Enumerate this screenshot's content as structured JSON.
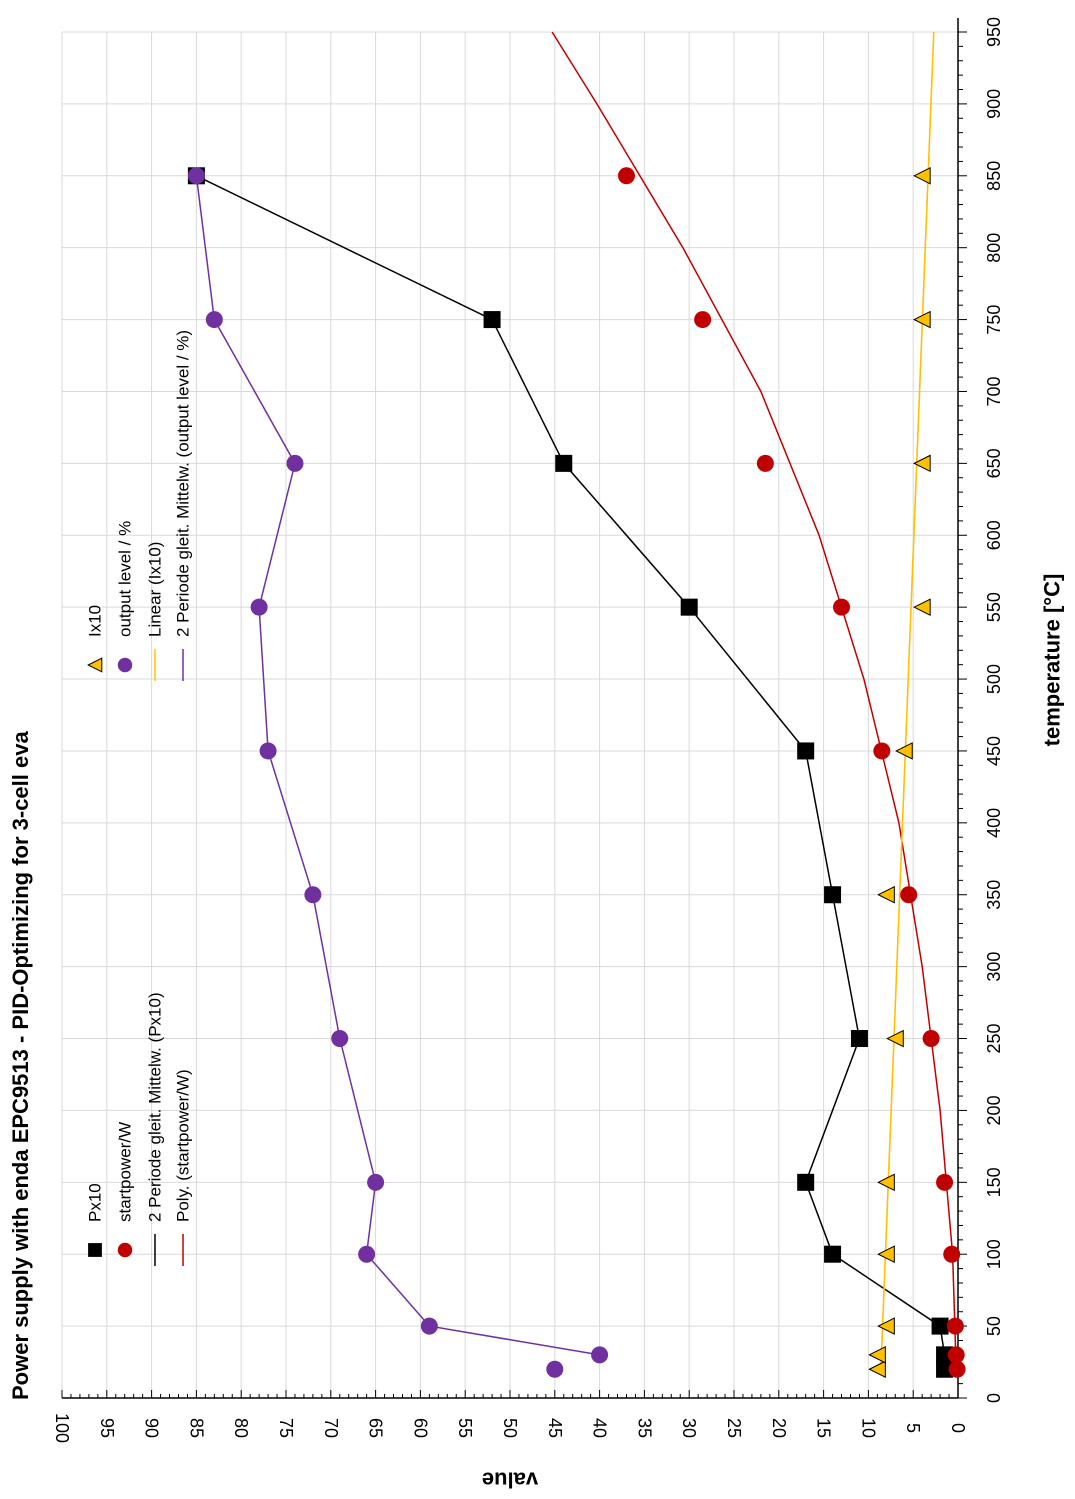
{
  "chart_data": {
    "type": "scatter",
    "title": "Power supply with enda EPC9513  - PID-Optimizing for  3-cell eva",
    "xlabel": "temperature [°C]",
    "ylabel": "value",
    "xlim": [
      0,
      950
    ],
    "ylim": [
      0,
      100
    ],
    "x_ticks": [
      "0",
      "50",
      "100",
      "150",
      "200",
      "250",
      "300",
      "350",
      "400",
      "450",
      "500",
      "550",
      "600",
      "650",
      "700",
      "750",
      "800",
      "850",
      "900",
      "950"
    ],
    "y_ticks": [
      "0",
      "5",
      "10",
      "15",
      "20",
      "25",
      "30",
      "35",
      "40",
      "45",
      "50",
      "55",
      "60",
      "65",
      "70",
      "75",
      "80",
      "85",
      "90",
      "95",
      "100"
    ],
    "grid": true,
    "orientation": "rotated 90° (temperature axis runs vertically on the page)",
    "legend": {
      "placement": "top-left",
      "entries": [
        {
          "label": "Px10",
          "marker": "square",
          "color": "#000000"
        },
        {
          "label": "startpower/W",
          "marker": "circle",
          "color": "#c00000"
        },
        {
          "label": "2 Periode gleit. Mittelw. (Px10)",
          "marker": "line",
          "color": "#000000"
        },
        {
          "label": "Poly. (startpower/W)",
          "marker": "line",
          "color": "#c00000"
        },
        {
          "label": "Ix10",
          "marker": "triangle",
          "color": "#ffc000"
        },
        {
          "label": "output level / %",
          "marker": "circle",
          "color": "#7030a0"
        },
        {
          "label": "Linear (Ix10)",
          "marker": "line",
          "color": "#ffc000"
        },
        {
          "label": "2 Periode gleit. Mittelw. (output level / %)",
          "marker": "line",
          "color": "#7030a0"
        }
      ]
    },
    "series": [
      {
        "name": "Px10",
        "marker": "square",
        "color": "#000000",
        "x": [
          20,
          30,
          50,
          100,
          150,
          250,
          350,
          450,
          550,
          650,
          750,
          850
        ],
        "y": [
          1.5,
          1.5,
          2,
          14,
          17,
          11,
          14,
          17,
          30,
          44,
          52,
          85
        ]
      },
      {
        "name": "startpower/W",
        "marker": "circle",
        "color": "#c00000",
        "x": [
          20,
          30,
          50,
          100,
          150,
          250,
          350,
          450,
          550,
          650,
          750,
          850
        ],
        "y": [
          0.1,
          0.2,
          0.3,
          0.7,
          1.5,
          3,
          5.5,
          8.5,
          13,
          21.5,
          28.5,
          37
        ]
      },
      {
        "name": "Ix10",
        "marker": "triangle",
        "color": "#ffc000",
        "x": [
          20,
          30,
          50,
          100,
          150,
          250,
          350,
          450,
          550,
          650,
          750,
          850
        ],
        "y": [
          9,
          9,
          8,
          8,
          8,
          7,
          8,
          6,
          4,
          4,
          4,
          4
        ]
      },
      {
        "name": "output level / %",
        "marker": "circle",
        "color": "#7030a0",
        "x": [
          20,
          30,
          50,
          100,
          150,
          250,
          350,
          450,
          550,
          650,
          750,
          850
        ],
        "y": [
          45,
          40,
          59,
          66,
          65,
          69,
          72,
          77,
          78,
          74,
          83,
          85
        ]
      },
      {
        "name": "2 Periode gleit. Mittelw. (Px10)",
        "type": "line",
        "color": "#000000",
        "x": [
          30,
          50,
          100,
          150,
          250,
          350,
          450,
          550,
          650,
          750,
          850
        ],
        "y": [
          1.5,
          2,
          14,
          17,
          11,
          14,
          17,
          30,
          44,
          52,
          85
        ]
      },
      {
        "name": "2 Periode gleit. Mittelw. (output level / %)",
        "type": "line",
        "color": "#7030a0",
        "x": [
          30,
          50,
          100,
          150,
          250,
          350,
          450,
          550,
          650,
          750,
          850
        ],
        "y": [
          40,
          59,
          66,
          65,
          69,
          72,
          77,
          78,
          74,
          83,
          85
        ]
      },
      {
        "name": "Poly. (startpower/W)",
        "type": "trend-polynomial",
        "color": "#c00000",
        "x": [
          20,
          100,
          200,
          300,
          400,
          500,
          600,
          700,
          800,
          900,
          950
        ],
        "y": [
          0.2,
          0.6,
          2,
          4,
          6.6,
          10.5,
          15.5,
          22,
          30.7,
          40.3,
          45.3
        ]
      },
      {
        "name": "Linear (Ix10)",
        "type": "trend-linear",
        "color": "#ffc000",
        "x": [
          20,
          950
        ],
        "y": [
          8.6,
          2.7
        ]
      }
    ]
  }
}
